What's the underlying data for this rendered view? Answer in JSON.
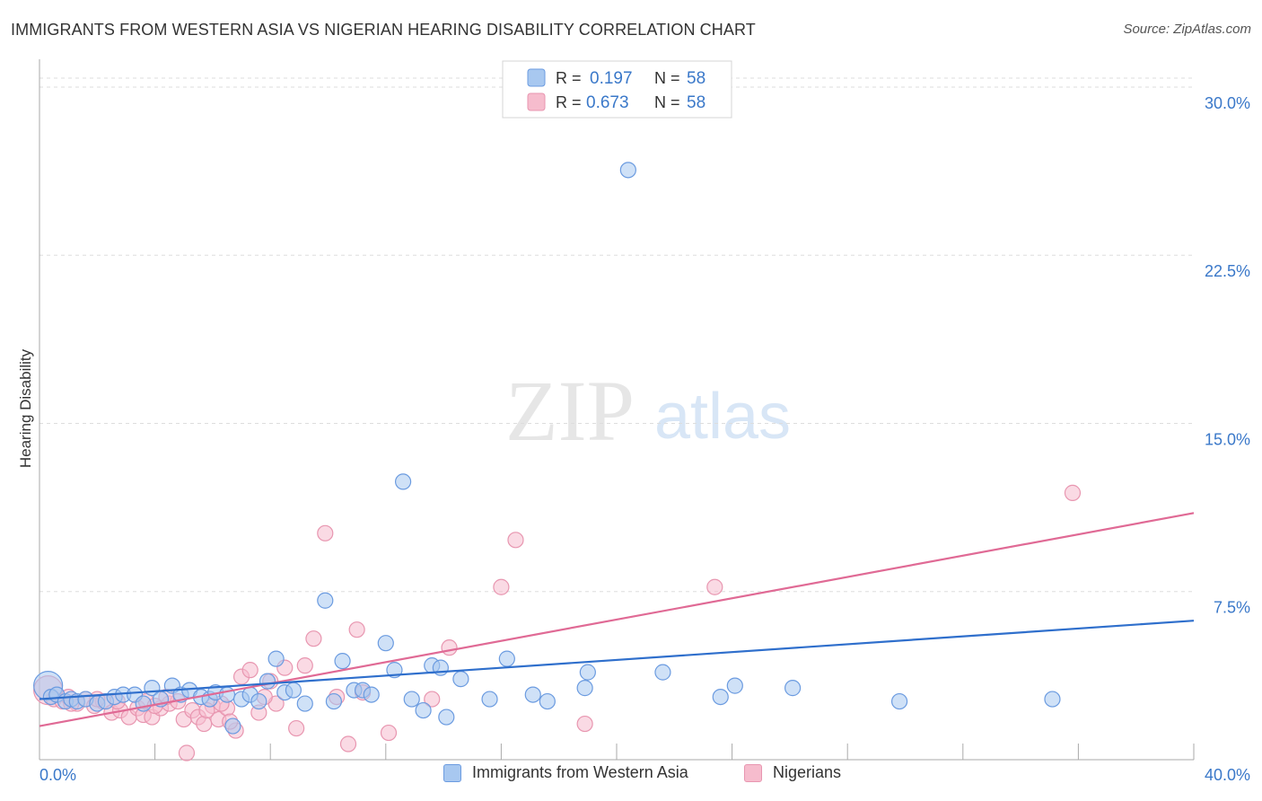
{
  "title": "IMMIGRANTS FROM WESTERN ASIA VS NIGERIAN HEARING DISABILITY CORRELATION CHART",
  "source": "Source: ZipAtlas.com",
  "watermark": {
    "zip": "ZIP",
    "atlas": "atlas"
  },
  "colors": {
    "blue_fill": "#a8c8f0",
    "blue_stroke": "#6b9be0",
    "blue_line": "#2f6fcc",
    "pink_fill": "#f6bccd",
    "pink_stroke": "#e896b0",
    "pink_line": "#e06a95",
    "axis_label": "#3a78c9",
    "grid": "#dddddd"
  },
  "legend": {
    "rows": [
      {
        "r_label": "R =",
        "r_value": "0.197",
        "n_label": "N =",
        "n_value": "58"
      },
      {
        "r_label": "R =",
        "r_value": "0.673",
        "n_label": "N =",
        "n_value": "58"
      }
    ]
  },
  "chart_data": {
    "type": "scatter",
    "ylabel": "Hearing Disability",
    "xlim": [
      0,
      40
    ],
    "ylim": [
      0,
      31
    ],
    "y_ticks": [
      {
        "value": 7.5,
        "label": "7.5%"
      },
      {
        "value": 15.0,
        "label": "15.0%"
      },
      {
        "value": 22.5,
        "label": "22.5%"
      },
      {
        "value": 30.0,
        "label": "30.0%"
      }
    ],
    "x_tick_labels": [
      {
        "value": 0,
        "label": "0.0%"
      },
      {
        "value": 40,
        "label": "40.0%"
      }
    ],
    "x_minor_ticks": [
      4,
      8,
      12,
      16,
      20,
      24,
      28,
      32,
      36,
      40
    ],
    "series": [
      {
        "name": "Immigrants from Western Asia",
        "color": "#a8c8f0",
        "trend": {
          "x": [
            0,
            40
          ],
          "y": [
            2.7,
            6.2
          ]
        },
        "points": [
          {
            "x": 0.3,
            "y": 3.3,
            "big": true
          },
          {
            "x": 0.4,
            "y": 2.8
          },
          {
            "x": 0.6,
            "y": 2.9
          },
          {
            "x": 0.9,
            "y": 2.6
          },
          {
            "x": 1.1,
            "y": 2.7
          },
          {
            "x": 1.3,
            "y": 2.6
          },
          {
            "x": 1.6,
            "y": 2.7
          },
          {
            "x": 2.0,
            "y": 2.5
          },
          {
            "x": 2.3,
            "y": 2.6
          },
          {
            "x": 2.6,
            "y": 2.8
          },
          {
            "x": 2.9,
            "y": 2.9
          },
          {
            "x": 3.3,
            "y": 2.9
          },
          {
            "x": 3.6,
            "y": 2.5
          },
          {
            "x": 3.9,
            "y": 3.2
          },
          {
            "x": 4.2,
            "y": 2.7
          },
          {
            "x": 4.6,
            "y": 3.3
          },
          {
            "x": 4.9,
            "y": 2.9
          },
          {
            "x": 5.2,
            "y": 3.1
          },
          {
            "x": 5.6,
            "y": 2.8
          },
          {
            "x": 5.9,
            "y": 2.7
          },
          {
            "x": 6.1,
            "y": 3.0
          },
          {
            "x": 6.5,
            "y": 2.9
          },
          {
            "x": 6.7,
            "y": 1.5
          },
          {
            "x": 7.0,
            "y": 2.7
          },
          {
            "x": 7.3,
            "y": 2.9
          },
          {
            "x": 7.6,
            "y": 2.6
          },
          {
            "x": 7.9,
            "y": 3.5
          },
          {
            "x": 8.2,
            "y": 4.5
          },
          {
            "x": 8.5,
            "y": 3.0
          },
          {
            "x": 8.8,
            "y": 3.1
          },
          {
            "x": 9.2,
            "y": 2.5
          },
          {
            "x": 9.9,
            "y": 7.1
          },
          {
            "x": 10.2,
            "y": 2.6
          },
          {
            "x": 10.5,
            "y": 4.4
          },
          {
            "x": 10.9,
            "y": 3.1
          },
          {
            "x": 11.2,
            "y": 3.1
          },
          {
            "x": 11.5,
            "y": 2.9
          },
          {
            "x": 12.0,
            "y": 5.2
          },
          {
            "x": 12.3,
            "y": 4.0
          },
          {
            "x": 12.6,
            "y": 12.4
          },
          {
            "x": 12.9,
            "y": 2.7
          },
          {
            "x": 13.3,
            "y": 2.2
          },
          {
            "x": 13.6,
            "y": 4.2
          },
          {
            "x": 13.9,
            "y": 4.1
          },
          {
            "x": 14.1,
            "y": 1.9
          },
          {
            "x": 14.6,
            "y": 3.6
          },
          {
            "x": 15.6,
            "y": 2.7
          },
          {
            "x": 16.2,
            "y": 4.5
          },
          {
            "x": 17.1,
            "y": 2.9
          },
          {
            "x": 17.6,
            "y": 2.6
          },
          {
            "x": 18.9,
            "y": 3.2
          },
          {
            "x": 19.0,
            "y": 3.9
          },
          {
            "x": 20.4,
            "y": 26.3
          },
          {
            "x": 21.6,
            "y": 3.9
          },
          {
            "x": 23.6,
            "y": 2.8
          },
          {
            "x": 24.1,
            "y": 3.3
          },
          {
            "x": 26.1,
            "y": 3.2
          },
          {
            "x": 29.8,
            "y": 2.6
          },
          {
            "x": 35.1,
            "y": 2.7
          }
        ]
      },
      {
        "name": "Nigerians",
        "color": "#f6bccd",
        "trend": {
          "x": [
            0,
            40
          ],
          "y": [
            1.5,
            11.0
          ]
        },
        "points": [
          {
            "x": 0.3,
            "y": 3.1,
            "big": true
          },
          {
            "x": 0.5,
            "y": 2.7
          },
          {
            "x": 0.8,
            "y": 2.6
          },
          {
            "x": 1.0,
            "y": 2.8
          },
          {
            "x": 1.3,
            "y": 2.5
          },
          {
            "x": 1.6,
            "y": 2.7
          },
          {
            "x": 1.9,
            "y": 2.4
          },
          {
            "x": 2.2,
            "y": 2.6
          },
          {
            "x": 2.5,
            "y": 2.1
          },
          {
            "x": 2.8,
            "y": 2.2
          },
          {
            "x": 3.1,
            "y": 1.9
          },
          {
            "x": 3.4,
            "y": 2.3
          },
          {
            "x": 3.6,
            "y": 2.0
          },
          {
            "x": 3.9,
            "y": 1.9
          },
          {
            "x": 4.2,
            "y": 2.3
          },
          {
            "x": 4.5,
            "y": 2.5
          },
          {
            "x": 4.8,
            "y": 2.6
          },
          {
            "x": 5.0,
            "y": 1.8
          },
          {
            "x": 5.3,
            "y": 2.2
          },
          {
            "x": 5.5,
            "y": 1.9
          },
          {
            "x": 5.7,
            "y": 1.6
          },
          {
            "x": 6.0,
            "y": 2.4
          },
          {
            "x": 6.2,
            "y": 1.8
          },
          {
            "x": 6.5,
            "y": 2.3
          },
          {
            "x": 6.8,
            "y": 1.3
          },
          {
            "x": 7.0,
            "y": 3.7
          },
          {
            "x": 7.3,
            "y": 4.0
          },
          {
            "x": 7.6,
            "y": 2.1
          },
          {
            "x": 8.0,
            "y": 3.5
          },
          {
            "x": 8.2,
            "y": 2.5
          },
          {
            "x": 8.5,
            "y": 4.1
          },
          {
            "x": 8.9,
            "y": 1.4
          },
          {
            "x": 9.2,
            "y": 4.2
          },
          {
            "x": 9.5,
            "y": 5.4
          },
          {
            "x": 9.9,
            "y": 10.1
          },
          {
            "x": 10.3,
            "y": 2.8
          },
          {
            "x": 10.7,
            "y": 0.7
          },
          {
            "x": 11.0,
            "y": 5.8
          },
          {
            "x": 11.2,
            "y": 3.0
          },
          {
            "x": 12.1,
            "y": 1.2
          },
          {
            "x": 13.6,
            "y": 2.7
          },
          {
            "x": 14.2,
            "y": 5.0
          },
          {
            "x": 16.0,
            "y": 7.7
          },
          {
            "x": 16.5,
            "y": 9.8
          },
          {
            "x": 18.9,
            "y": 1.6
          },
          {
            "x": 23.4,
            "y": 7.7
          },
          {
            "x": 35.8,
            "y": 11.9
          },
          {
            "x": 5.1,
            "y": 0.3
          },
          {
            "x": 2.7,
            "y": 2.6
          },
          {
            "x": 3.7,
            "y": 2.6
          },
          {
            "x": 4.4,
            "y": 2.8
          },
          {
            "x": 5.8,
            "y": 2.2
          },
          {
            "x": 6.6,
            "y": 1.7
          },
          {
            "x": 1.1,
            "y": 2.5
          },
          {
            "x": 2.0,
            "y": 2.7
          },
          {
            "x": 4.0,
            "y": 2.4
          },
          {
            "x": 7.8,
            "y": 2.8
          },
          {
            "x": 6.3,
            "y": 2.5
          }
        ]
      }
    ]
  }
}
